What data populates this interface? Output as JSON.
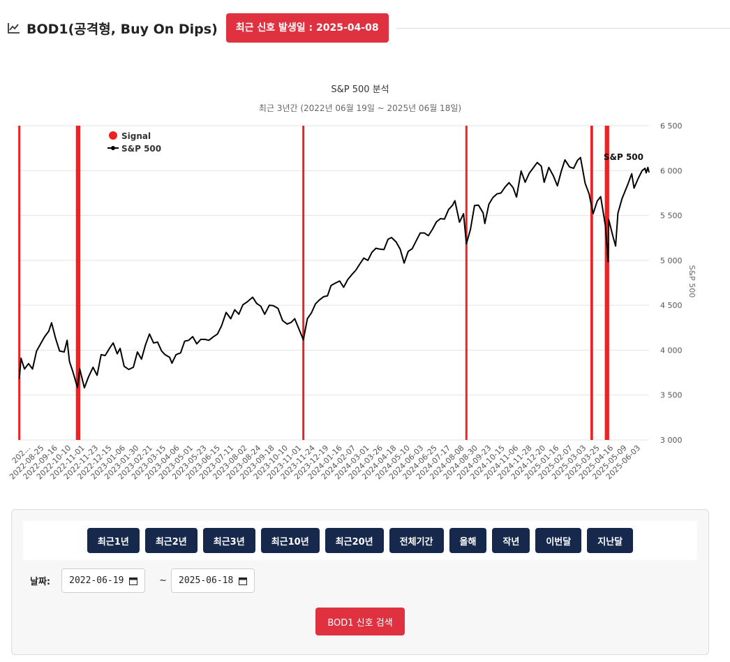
{
  "header": {
    "title": "BOD1(공격형, Buy On Dips)",
    "badge": "최근 신호 발생일 : 2025-04-08",
    "icon": "line-chart-icon"
  },
  "colors": {
    "accent_red": "#e03141",
    "navy": "#16284b",
    "signal": "#ee2222",
    "line": "#000000"
  },
  "chart_data": {
    "type": "line",
    "title": "S&P 500 분석",
    "subtitle": "최근 3년간 (2022년 06월 19일 ~ 2025년 06월 18일)",
    "ylabel": "S&P 500",
    "ylim": [
      3000,
      6500
    ],
    "y_ticks": [
      "3 000",
      "3 500",
      "4 000",
      "4 500",
      "5 000",
      "5 500",
      "6 000",
      "6 500"
    ],
    "y_tick_values": [
      3000,
      3500,
      4000,
      4500,
      5000,
      5500,
      6000,
      6500
    ],
    "grid": true,
    "legend": {
      "placement": "top-left",
      "items": [
        "Signal",
        "S&P 500"
      ]
    },
    "end_label": "S&P 500",
    "x_range": [
      "2022-06-19",
      "2025-06-18"
    ],
    "x_ticks": [
      "202...",
      "2022-08-25",
      "2022-09-16",
      "2022-10-10",
      "2022-11-01",
      "2022-11-23",
      "2022-12-15",
      "2023-01-06",
      "2023-01-30",
      "2023-02-21",
      "2023-03-15",
      "2023-04-06",
      "2023-05-01",
      "2023-05-23",
      "2023-06-15",
      "2023-07-11",
      "2023-08-02",
      "2023-08-24",
      "2023-09-18",
      "2023-10-10",
      "2023-11-01",
      "2023-11-24",
      "2023-12-19",
      "2024-01-16",
      "2024-02-07",
      "2024-03-01",
      "2024-03-26",
      "2024-04-18",
      "2024-05-10",
      "2024-06-03",
      "2024-06-25",
      "2024-07-17",
      "2024-08-08",
      "2024-08-30",
      "2024-09-23",
      "2024-10-15",
      "2024-11-06",
      "2024-11-28",
      "2024-12-20",
      "2025-01-16",
      "2025-02-07",
      "2025-03-03",
      "2025-03-25",
      "2025-04-16",
      "2025-05-09",
      "2025-06-03"
    ],
    "series": [
      {
        "name": "S&P 500",
        "points": [
          [
            "2022-06-21",
            3680
          ],
          [
            "2022-06-24",
            3910
          ],
          [
            "2022-06-30",
            3790
          ],
          [
            "2022-07-07",
            3850
          ],
          [
            "2022-07-14",
            3790
          ],
          [
            "2022-07-21",
            3990
          ],
          [
            "2022-07-28",
            4070
          ],
          [
            "2022-08-04",
            4150
          ],
          [
            "2022-08-11",
            4210
          ],
          [
            "2022-08-16",
            4305
          ],
          [
            "2022-08-23",
            4130
          ],
          [
            "2022-08-30",
            3990
          ],
          [
            "2022-09-07",
            3980
          ],
          [
            "2022-09-12",
            4110
          ],
          [
            "2022-09-16",
            3875
          ],
          [
            "2022-09-22",
            3760
          ],
          [
            "2022-09-30",
            3585
          ],
          [
            "2022-10-04",
            3790
          ],
          [
            "2022-10-12",
            3580
          ],
          [
            "2022-10-19",
            3700
          ],
          [
            "2022-10-27",
            3810
          ],
          [
            "2022-11-03",
            3720
          ],
          [
            "2022-11-10",
            3950
          ],
          [
            "2022-11-17",
            3940
          ],
          [
            "2022-11-25",
            4025
          ],
          [
            "2022-12-01",
            4080
          ],
          [
            "2022-12-08",
            3960
          ],
          [
            "2022-12-13",
            4020
          ],
          [
            "2022-12-20",
            3820
          ],
          [
            "2022-12-28",
            3785
          ],
          [
            "2023-01-05",
            3810
          ],
          [
            "2023-01-12",
            3980
          ],
          [
            "2023-01-19",
            3900
          ],
          [
            "2023-01-26",
            4060
          ],
          [
            "2023-02-02",
            4180
          ],
          [
            "2023-02-09",
            4080
          ],
          [
            "2023-02-16",
            4090
          ],
          [
            "2023-02-23",
            3990
          ],
          [
            "2023-03-01",
            3950
          ],
          [
            "2023-03-09",
            3920
          ],
          [
            "2023-03-13",
            3855
          ],
          [
            "2023-03-20",
            3950
          ],
          [
            "2023-03-28",
            3970
          ],
          [
            "2023-04-04",
            4100
          ],
          [
            "2023-04-11",
            4110
          ],
          [
            "2023-04-18",
            4150
          ],
          [
            "2023-04-25",
            4070
          ],
          [
            "2023-05-02",
            4120
          ],
          [
            "2023-05-09",
            4120
          ],
          [
            "2023-05-16",
            4110
          ],
          [
            "2023-05-23",
            4145
          ],
          [
            "2023-05-31",
            4180
          ],
          [
            "2023-06-07",
            4270
          ],
          [
            "2023-06-15",
            4420
          ],
          [
            "2023-06-23",
            4350
          ],
          [
            "2023-06-30",
            4450
          ],
          [
            "2023-07-07",
            4400
          ],
          [
            "2023-07-14",
            4505
          ],
          [
            "2023-07-21",
            4535
          ],
          [
            "2023-07-31",
            4590
          ],
          [
            "2023-08-07",
            4520
          ],
          [
            "2023-08-14",
            4490
          ],
          [
            "2023-08-21",
            4400
          ],
          [
            "2023-08-29",
            4500
          ],
          [
            "2023-09-05",
            4495
          ],
          [
            "2023-09-13",
            4465
          ],
          [
            "2023-09-21",
            4330
          ],
          [
            "2023-09-29",
            4290
          ],
          [
            "2023-10-06",
            4310
          ],
          [
            "2023-10-12",
            4350
          ],
          [
            "2023-10-20",
            4225
          ],
          [
            "2023-10-27",
            4115
          ],
          [
            "2023-11-03",
            4350
          ],
          [
            "2023-11-10",
            4415
          ],
          [
            "2023-11-17",
            4515
          ],
          [
            "2023-11-24",
            4560
          ],
          [
            "2023-12-01",
            4595
          ],
          [
            "2023-12-08",
            4605
          ],
          [
            "2023-12-14",
            4720
          ],
          [
            "2023-12-21",
            4745
          ],
          [
            "2023-12-29",
            4770
          ],
          [
            "2024-01-05",
            4700
          ],
          [
            "2024-01-12",
            4785
          ],
          [
            "2024-01-19",
            4840
          ],
          [
            "2024-01-26",
            4890
          ],
          [
            "2024-02-02",
            4960
          ],
          [
            "2024-02-09",
            5025
          ],
          [
            "2024-02-16",
            5000
          ],
          [
            "2024-02-23",
            5090
          ],
          [
            "2024-03-01",
            5135
          ],
          [
            "2024-03-08",
            5125
          ],
          [
            "2024-03-15",
            5120
          ],
          [
            "2024-03-22",
            5235
          ],
          [
            "2024-03-28",
            5255
          ],
          [
            "2024-04-05",
            5205
          ],
          [
            "2024-04-12",
            5125
          ],
          [
            "2024-04-19",
            4970
          ],
          [
            "2024-04-26",
            5100
          ],
          [
            "2024-05-03",
            5130
          ],
          [
            "2024-05-10",
            5220
          ],
          [
            "2024-05-17",
            5305
          ],
          [
            "2024-05-24",
            5305
          ],
          [
            "2024-05-31",
            5275
          ],
          [
            "2024-06-07",
            5345
          ],
          [
            "2024-06-14",
            5430
          ],
          [
            "2024-06-21",
            5465
          ],
          [
            "2024-06-28",
            5460
          ],
          [
            "2024-07-05",
            5565
          ],
          [
            "2024-07-12",
            5615
          ],
          [
            "2024-07-16",
            5665
          ],
          [
            "2024-07-24",
            5425
          ],
          [
            "2024-07-31",
            5520
          ],
          [
            "2024-08-05",
            5185
          ],
          [
            "2024-08-12",
            5345
          ],
          [
            "2024-08-19",
            5610
          ],
          [
            "2024-08-26",
            5615
          ],
          [
            "2024-09-03",
            5530
          ],
          [
            "2024-09-06",
            5410
          ],
          [
            "2024-09-13",
            5625
          ],
          [
            "2024-09-20",
            5700
          ],
          [
            "2024-09-27",
            5740
          ],
          [
            "2024-10-04",
            5750
          ],
          [
            "2024-10-11",
            5815
          ],
          [
            "2024-10-18",
            5865
          ],
          [
            "2024-10-25",
            5810
          ],
          [
            "2024-10-31",
            5705
          ],
          [
            "2024-11-08",
            5995
          ],
          [
            "2024-11-15",
            5870
          ],
          [
            "2024-11-22",
            5970
          ],
          [
            "2024-11-29",
            6030
          ],
          [
            "2024-12-06",
            6090
          ],
          [
            "2024-12-13",
            6050
          ],
          [
            "2024-12-18",
            5870
          ],
          [
            "2024-12-26",
            6035
          ],
          [
            "2025-01-03",
            5940
          ],
          [
            "2025-01-10",
            5830
          ],
          [
            "2025-01-17",
            6000
          ],
          [
            "2025-01-23",
            6120
          ],
          [
            "2025-01-31",
            6040
          ],
          [
            "2025-02-07",
            6025
          ],
          [
            "2025-02-14",
            6115
          ],
          [
            "2025-02-19",
            6145
          ],
          [
            "2025-02-27",
            5860
          ],
          [
            "2025-03-06",
            5740
          ],
          [
            "2025-03-13",
            5520
          ],
          [
            "2025-03-20",
            5660
          ],
          [
            "2025-03-26",
            5710
          ],
          [
            "2025-04-03",
            5395
          ],
          [
            "2025-04-08",
            4985
          ],
          [
            "2025-04-09",
            5455
          ],
          [
            "2025-04-16",
            5275
          ],
          [
            "2025-04-21",
            5160
          ],
          [
            "2025-04-25",
            5525
          ],
          [
            "2025-05-02",
            5685
          ],
          [
            "2025-05-12",
            5845
          ],
          [
            "2025-05-19",
            5965
          ],
          [
            "2025-05-23",
            5805
          ],
          [
            "2025-05-30",
            5910
          ],
          [
            "2025-06-06",
            6000
          ],
          [
            "2025-06-11",
            6025
          ],
          [
            "2025-06-13",
            5975
          ],
          [
            "2025-06-16",
            6035
          ],
          [
            "2025-06-18",
            5980
          ]
        ]
      }
    ],
    "signals": {
      "name": "Signal",
      "dates": [
        "2022-06-21",
        "2022-09-29",
        "2022-09-30",
        "2022-10-03",
        "2023-10-27",
        "2024-08-05",
        "2025-03-10",
        "2025-03-11",
        "2025-04-04",
        "2025-04-07",
        "2025-04-08"
      ]
    }
  },
  "controls": {
    "range_buttons": [
      "최근1년",
      "최근2년",
      "최근3년",
      "최근10년",
      "최근20년",
      "전체기간",
      "올해",
      "작년",
      "이번달",
      "지난달"
    ],
    "date_label": "날짜:",
    "start_date": "2022-06-19",
    "end_date": "2025-06-18",
    "separator": "~",
    "search_label": "BOD1 신호 검색"
  }
}
